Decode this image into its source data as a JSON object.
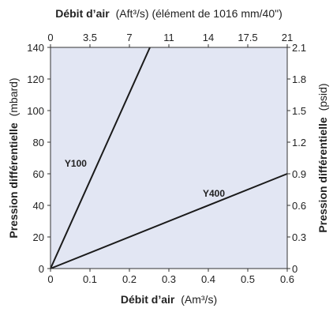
{
  "chart_data": {
    "type": "line",
    "x_bottom": {
      "title_bold": "Débit d’air",
      "title_unit": "(Am³/s)",
      "range": [
        0,
        0.6
      ],
      "ticks": [
        0,
        0.1,
        0.2,
        0.3,
        0.4,
        0.5,
        0.6
      ],
      "tick_labels": [
        "0",
        "0.1",
        "0.2",
        "0.3",
        "0.4",
        "0.5",
        "0.6"
      ]
    },
    "x_top": {
      "title_bold": "Débit d’air",
      "title_unit": "(Aft³/s) (élément de 1016 mm/40\")",
      "range": [
        0,
        21
      ],
      "ticks": [
        0,
        3.5,
        7,
        10.5,
        14,
        17.5,
        21
      ],
      "tick_labels": [
        "0",
        "3.5",
        "7",
        "11",
        "14",
        "17.5",
        "21"
      ]
    },
    "y_left": {
      "title_bold": "Pression différentielle",
      "title_unit": "(mbard)",
      "range": [
        0,
        140
      ],
      "ticks": [
        0,
        20,
        40,
        60,
        80,
        100,
        120,
        140
      ],
      "tick_labels": [
        "0",
        "20",
        "40",
        "60",
        "80",
        "100",
        "120",
        "140"
      ]
    },
    "y_right": {
      "title_bold": "Pression différentielle",
      "title_unit": "(psid)",
      "range": [
        0,
        2.1
      ],
      "ticks": [
        0,
        0.3,
        0.6,
        0.9,
        1.2,
        1.5,
        1.8,
        2.1
      ],
      "tick_labels": [
        "0",
        "0.3",
        "0.6",
        "0.9",
        "1.2",
        "1.5",
        "1.8",
        "2.1"
      ]
    },
    "series": [
      {
        "name": "Y100",
        "points": [
          [
            0,
            0
          ],
          [
            0.252,
            140
          ]
        ]
      },
      {
        "name": "Y400",
        "points": [
          [
            0,
            0
          ],
          [
            0.6,
            60
          ]
        ]
      }
    ],
    "grid": false,
    "colors": {
      "plot_background": "#e2e6f3",
      "line": "#1a1a1a",
      "axis": "#333333"
    }
  }
}
